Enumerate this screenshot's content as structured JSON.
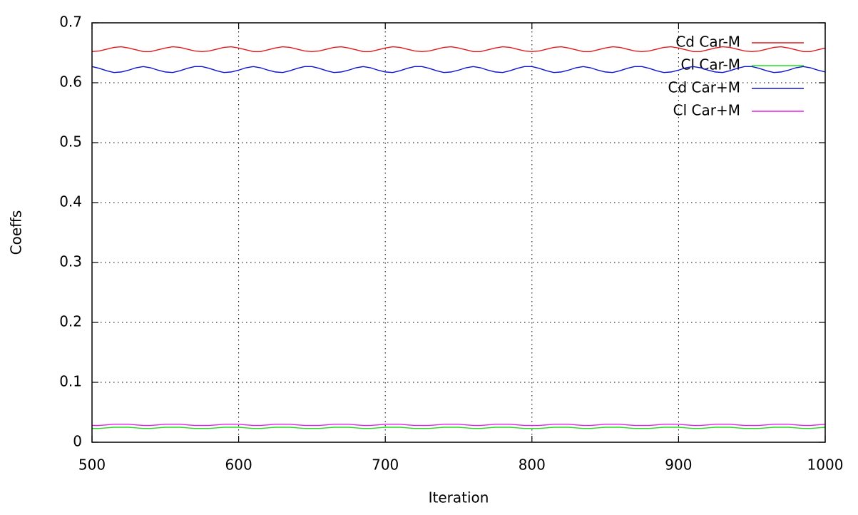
{
  "chart_data": {
    "type": "line",
    "x_label": "Iteration",
    "y_label": "Coeffs",
    "xlim": [
      500,
      1000
    ],
    "ylim": [
      0,
      0.7
    ],
    "xticks": [
      500,
      600,
      700,
      800,
      900,
      1000
    ],
    "yticks": [
      0,
      0.1,
      0.2,
      0.3,
      0.4,
      0.5,
      0.6,
      0.7
    ],
    "grid": true,
    "legend": "top-right",
    "x": [
      500,
      505,
      510,
      515,
      520,
      525,
      530,
      535,
      540,
      545,
      550,
      555,
      560,
      565,
      570,
      575,
      580,
      585,
      590,
      595,
      600,
      605,
      610,
      615,
      620,
      625,
      630,
      635,
      640,
      645,
      650,
      655,
      660,
      665,
      670,
      675,
      680,
      685,
      690,
      695,
      700,
      705,
      710,
      715,
      720,
      725,
      730,
      735,
      740,
      745,
      750,
      755,
      760,
      765,
      770,
      775,
      780,
      785,
      790,
      795,
      800,
      805,
      810,
      815,
      820,
      825,
      830,
      835,
      840,
      845,
      850,
      855,
      860,
      865,
      870,
      875,
      880,
      885,
      890,
      895,
      900,
      905,
      910,
      915,
      920,
      925,
      930,
      935,
      940,
      945,
      950,
      955,
      960,
      965,
      970,
      975,
      980,
      985,
      990,
      995,
      1000
    ],
    "series": [
      {
        "name": "Cd Car-M",
        "color": "#e41a1c",
        "values": [
          0.652,
          0.653,
          0.656,
          0.659,
          0.66,
          0.658,
          0.655,
          0.652,
          0.652,
          0.655,
          0.658,
          0.66,
          0.659,
          0.656,
          0.653,
          0.652,
          0.653,
          0.656,
          0.659,
          0.66,
          0.658,
          0.655,
          0.652,
          0.652,
          0.655,
          0.658,
          0.66,
          0.659,
          0.656,
          0.653,
          0.652,
          0.653,
          0.656,
          0.659,
          0.66,
          0.658,
          0.655,
          0.652,
          0.652,
          0.655,
          0.658,
          0.66,
          0.659,
          0.656,
          0.653,
          0.652,
          0.653,
          0.656,
          0.659,
          0.66,
          0.658,
          0.655,
          0.652,
          0.652,
          0.655,
          0.658,
          0.66,
          0.659,
          0.656,
          0.653,
          0.652,
          0.653,
          0.656,
          0.659,
          0.66,
          0.658,
          0.655,
          0.652,
          0.652,
          0.655,
          0.658,
          0.66,
          0.659,
          0.656,
          0.653,
          0.652,
          0.653,
          0.656,
          0.659,
          0.66,
          0.658,
          0.655,
          0.652,
          0.652,
          0.655,
          0.658,
          0.66,
          0.659,
          0.656,
          0.653,
          0.652,
          0.653,
          0.656,
          0.659,
          0.66,
          0.658,
          0.655,
          0.652,
          0.652,
          0.655,
          0.658
        ]
      },
      {
        "name": "Cl Car-M",
        "color": "#22dd22",
        "values": [
          0.023,
          0.023,
          0.024,
          0.025,
          0.025,
          0.025,
          0.024,
          0.023,
          0.023,
          0.024,
          0.025,
          0.025,
          0.025,
          0.024,
          0.023,
          0.023,
          0.023,
          0.024,
          0.025,
          0.025,
          0.025,
          0.024,
          0.023,
          0.023,
          0.024,
          0.025,
          0.025,
          0.025,
          0.024,
          0.023,
          0.023,
          0.023,
          0.024,
          0.025,
          0.025,
          0.025,
          0.024,
          0.023,
          0.023,
          0.024,
          0.025,
          0.025,
          0.025,
          0.024,
          0.023,
          0.023,
          0.023,
          0.024,
          0.025,
          0.025,
          0.025,
          0.024,
          0.023,
          0.023,
          0.024,
          0.025,
          0.025,
          0.025,
          0.024,
          0.023,
          0.023,
          0.023,
          0.024,
          0.025,
          0.025,
          0.025,
          0.024,
          0.023,
          0.023,
          0.024,
          0.025,
          0.025,
          0.025,
          0.024,
          0.023,
          0.023,
          0.023,
          0.024,
          0.025,
          0.025,
          0.025,
          0.024,
          0.023,
          0.023,
          0.024,
          0.025,
          0.025,
          0.025,
          0.024,
          0.023,
          0.023,
          0.023,
          0.024,
          0.025,
          0.025,
          0.025,
          0.024,
          0.023,
          0.023,
          0.024,
          0.025
        ]
      },
      {
        "name": "Cd Car+M",
        "color": "#0a14d2",
        "values": [
          0.627,
          0.624,
          0.62,
          0.617,
          0.618,
          0.621,
          0.625,
          0.627,
          0.625,
          0.621,
          0.618,
          0.617,
          0.62,
          0.624,
          0.627,
          0.627,
          0.624,
          0.62,
          0.617,
          0.618,
          0.621,
          0.625,
          0.627,
          0.625,
          0.621,
          0.618,
          0.617,
          0.62,
          0.624,
          0.627,
          0.627,
          0.624,
          0.62,
          0.617,
          0.618,
          0.621,
          0.625,
          0.627,
          0.625,
          0.621,
          0.618,
          0.617,
          0.62,
          0.624,
          0.627,
          0.627,
          0.624,
          0.62,
          0.617,
          0.618,
          0.621,
          0.625,
          0.627,
          0.625,
          0.621,
          0.618,
          0.617,
          0.62,
          0.624,
          0.627,
          0.627,
          0.624,
          0.62,
          0.617,
          0.618,
          0.621,
          0.625,
          0.627,
          0.625,
          0.621,
          0.618,
          0.617,
          0.62,
          0.624,
          0.627,
          0.627,
          0.624,
          0.62,
          0.617,
          0.618,
          0.621,
          0.625,
          0.627,
          0.625,
          0.621,
          0.618,
          0.617,
          0.62,
          0.624,
          0.627,
          0.627,
          0.624,
          0.62,
          0.617,
          0.618,
          0.621,
          0.625,
          0.627,
          0.625,
          0.621,
          0.618
        ]
      },
      {
        "name": "Cl Car+M",
        "color": "#e81ee8",
        "values": [
          0.028,
          0.028,
          0.029,
          0.03,
          0.03,
          0.03,
          0.029,
          0.028,
          0.028,
          0.029,
          0.03,
          0.03,
          0.03,
          0.029,
          0.028,
          0.028,
          0.028,
          0.029,
          0.03,
          0.03,
          0.03,
          0.029,
          0.028,
          0.028,
          0.029,
          0.03,
          0.03,
          0.03,
          0.029,
          0.028,
          0.028,
          0.028,
          0.029,
          0.03,
          0.03,
          0.03,
          0.029,
          0.028,
          0.028,
          0.029,
          0.03,
          0.03,
          0.03,
          0.029,
          0.028,
          0.028,
          0.028,
          0.029,
          0.03,
          0.03,
          0.03,
          0.029,
          0.028,
          0.028,
          0.029,
          0.03,
          0.03,
          0.03,
          0.029,
          0.028,
          0.028,
          0.028,
          0.029,
          0.03,
          0.03,
          0.03,
          0.029,
          0.028,
          0.028,
          0.029,
          0.03,
          0.03,
          0.03,
          0.029,
          0.028,
          0.028,
          0.028,
          0.029,
          0.03,
          0.03,
          0.03,
          0.029,
          0.028,
          0.028,
          0.029,
          0.03,
          0.03,
          0.03,
          0.029,
          0.028,
          0.028,
          0.028,
          0.029,
          0.03,
          0.03,
          0.03,
          0.029,
          0.028,
          0.028,
          0.029,
          0.03
        ]
      }
    ]
  }
}
